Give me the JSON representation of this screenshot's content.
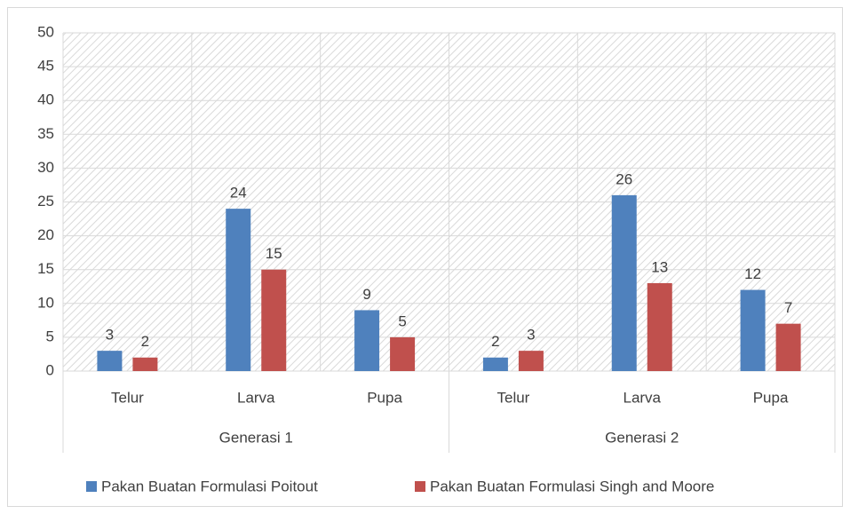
{
  "chart_data": {
    "type": "bar",
    "categories": [
      "Telur",
      "Larva",
      "Pupa",
      "Telur",
      "Larva",
      "Pupa"
    ],
    "groups": [
      "Generasi 1",
      "Generasi 2"
    ],
    "series": [
      {
        "name": "Pakan Buatan Formulasi Poitout",
        "color": "#4f81bd",
        "values": [
          3,
          24,
          9,
          2,
          26,
          12
        ]
      },
      {
        "name": "Pakan Buatan Formulasi Singh and Moore",
        "color": "#c0504d",
        "values": [
          2,
          15,
          5,
          3,
          13,
          7
        ]
      }
    ],
    "ylim": [
      0,
      50
    ],
    "yticks": [
      0,
      5,
      10,
      15,
      20,
      25,
      30,
      35,
      40,
      45,
      50
    ],
    "grid": true,
    "legend": "bottom"
  }
}
